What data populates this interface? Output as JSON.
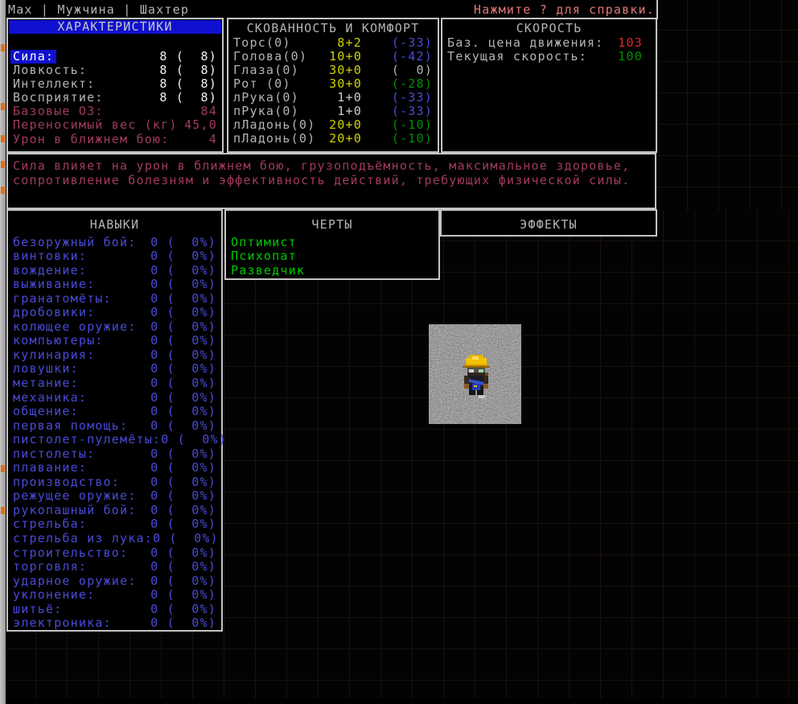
{
  "top_bar": {
    "status": "Max | Мужчина | Шахтер",
    "help": "Нажмите ? для справки."
  },
  "stats_panel": {
    "title": "ХАРАКТЕРИСТИКИ",
    "rows": [
      {
        "label": "Сила:",
        "value": "8 (  8)",
        "style": "selected"
      },
      {
        "label": "Ловкость:",
        "value": "8 (  8)",
        "style": "normal"
      },
      {
        "label": "Интеллект:",
        "value": "8 (  8)",
        "style": "normal"
      },
      {
        "label": "Восприятие:",
        "value": "8 (  8)",
        "style": "normal"
      },
      {
        "label": "Базовые ОЗ:",
        "value": "84",
        "style": "magenta"
      },
      {
        "label": "Переносимый вес (кг)",
        "value": "45,0",
        "style": "magenta"
      },
      {
        "label": "Урон в ближнем бою:",
        "value": "4",
        "style": "magenta"
      }
    ]
  },
  "encumbrance_panel": {
    "title": "СКОВАННОСТЬ И КОМФОРТ",
    "rows": [
      {
        "part": "Торс(0)",
        "value": "8+2",
        "value_color": "yellow",
        "penalty": "(-33)",
        "penalty_color": "blue"
      },
      {
        "part": "Голова(0)",
        "value": "10+0",
        "value_color": "yellow",
        "penalty": "(-42)",
        "penalty_color": "blue"
      },
      {
        "part": "Глаза(0)",
        "value": "30+0",
        "value_color": "yellow",
        "penalty": "(  0)",
        "penalty_color": "gray"
      },
      {
        "part": "Рот (0)",
        "value": "30+0",
        "value_color": "yellow",
        "penalty": "(-28)",
        "penalty_color": "green"
      },
      {
        "part": "лРука(0)",
        "value": "1+0",
        "value_color": "lgray",
        "penalty": "(-33)",
        "penalty_color": "blue"
      },
      {
        "part": "пРука(0)",
        "value": "1+0",
        "value_color": "lgray",
        "penalty": "(-33)",
        "penalty_color": "blue"
      },
      {
        "part": "лЛадонь(0)",
        "value": "20+0",
        "value_color": "yellow",
        "penalty": "(-10)",
        "penalty_color": "green"
      },
      {
        "part": "пЛадонь(0)",
        "value": "20+0",
        "value_color": "yellow",
        "penalty": "(-10)",
        "penalty_color": "green"
      }
    ]
  },
  "speed_panel": {
    "title": "СКОРОСТЬ",
    "rows": [
      {
        "label": "Баз. цена движения:",
        "value": "103",
        "value_color": "red"
      },
      {
        "label": "Текущая скорость:",
        "value": "100",
        "value_color": "green"
      }
    ]
  },
  "description_panel": {
    "lines": [
      "Сила влияет на урон в ближнем бою, грузоподъёмность, максимальное здоровье,",
      "сопротивление болезням и эффективность действий, требующих физической силы."
    ]
  },
  "skills_panel": {
    "title": "НАВЫКИ",
    "skills": [
      {
        "name": "безоружный бой:",
        "value": "0 (  0%)"
      },
      {
        "name": "винтовки:",
        "value": "0 (  0%)"
      },
      {
        "name": "вождение:",
        "value": "0 (  0%)"
      },
      {
        "name": "выживание:",
        "value": "0 (  0%)"
      },
      {
        "name": "гранатомёты:",
        "value": "0 (  0%)"
      },
      {
        "name": "дробовики:",
        "value": "0 (  0%)"
      },
      {
        "name": "колющее оружие:",
        "value": "0 (  0%)"
      },
      {
        "name": "компьютеры:",
        "value": "0 (  0%)"
      },
      {
        "name": "кулинария:",
        "value": "0 (  0%)"
      },
      {
        "name": "ловушки:",
        "value": "0 (  0%)"
      },
      {
        "name": "метание:",
        "value": "0 (  0%)"
      },
      {
        "name": "механика:",
        "value": "0 (  0%)"
      },
      {
        "name": "общение:",
        "value": "0 (  0%)"
      },
      {
        "name": "первая помощь:",
        "value": "0 (  0%)"
      },
      {
        "name": "пистолет-пулемёты:",
        "value": "0 (  0%)"
      },
      {
        "name": "пистолеты:",
        "value": "0 (  0%)"
      },
      {
        "name": "плавание:",
        "value": "0 (  0%)"
      },
      {
        "name": "производство:",
        "value": "0 (  0%)"
      },
      {
        "name": "режущее оружие:",
        "value": "0 (  0%)"
      },
      {
        "name": "рукопашный бой:",
        "value": "0 (  0%)"
      },
      {
        "name": "стрельба:",
        "value": "0 (  0%)"
      },
      {
        "name": "стрельба из лука:",
        "value": "0 (  0%)"
      },
      {
        "name": "строительство:",
        "value": "0 (  0%)"
      },
      {
        "name": "торговля:",
        "value": "0 (  0%)"
      },
      {
        "name": "ударное оружие:",
        "value": "0 (  0%)"
      },
      {
        "name": "уклонение:",
        "value": "0 (  0%)"
      },
      {
        "name": "шитьё:",
        "value": "0 (  0%)"
      },
      {
        "name": "электроника:",
        "value": "0 (  0%)"
      }
    ]
  },
  "traits_panel": {
    "title": "ЧЕРТЫ",
    "traits": [
      "Оптимист",
      "Психопат",
      "Разведчик"
    ]
  },
  "effects_panel": {
    "title": "ЭФФЕКТЫ"
  },
  "map": {
    "player_sprite": "miner-in-yellow-hardhat"
  },
  "colors": {
    "selection_blue": "#1010d0",
    "gray": "#b4b4b4",
    "white": "#f2f2f2",
    "magenta": "#a03a5e",
    "yellow": "#d2d200",
    "blue": "#4a4ad8",
    "dark_green": "#009000",
    "bright_green": "#00c800",
    "red": "#dc2828",
    "salmon": "#e07878"
  }
}
